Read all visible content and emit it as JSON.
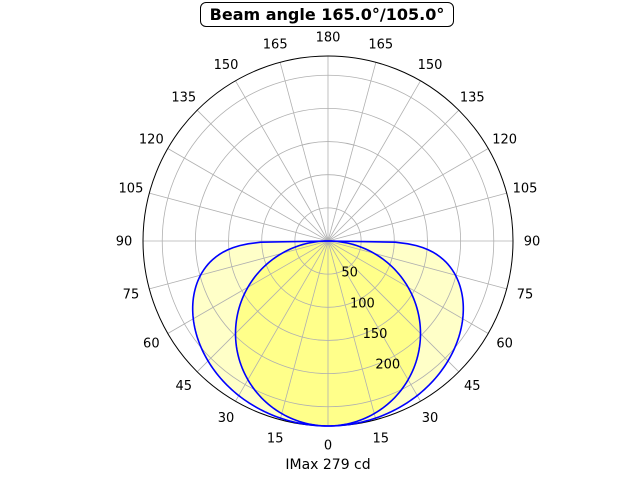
{
  "chart_data": {
    "type": "polar",
    "title": "Beam angle 165.0°/105.0°",
    "xlabel": "IMax 279 cd",
    "angle_ticks_right": [
      "0",
      "15",
      "30",
      "45",
      "60",
      "75",
      "90",
      "105",
      "120",
      "135",
      "150",
      "165",
      "180"
    ],
    "angle_ticks_left": [
      "15",
      "30",
      "45",
      "60",
      "75",
      "90",
      "105",
      "120",
      "135",
      "150",
      "165"
    ],
    "radial_ticks": [
      "50",
      "100",
      "150",
      "200"
    ],
    "radial_tick_values": [
      50,
      100,
      150,
      200
    ],
    "rlim": [
      0,
      279
    ],
    "grid": true,
    "series": [
      {
        "plane": "C0-C180",
        "imax": 279,
        "beam_angle": 165.0,
        "shape": "cos-pow",
        "exponent": 0.25
      },
      {
        "plane": "C90-C270",
        "imax": 279,
        "beam_angle": 105.0,
        "shape": "cos",
        "exponent": 1.0
      }
    ],
    "colors": {
      "curve": "#0000ff",
      "fill_wide": "#ffffc8",
      "fill_narrow": "#ffff8a",
      "grid": "#b0b0b0",
      "axis": "#000000"
    }
  }
}
